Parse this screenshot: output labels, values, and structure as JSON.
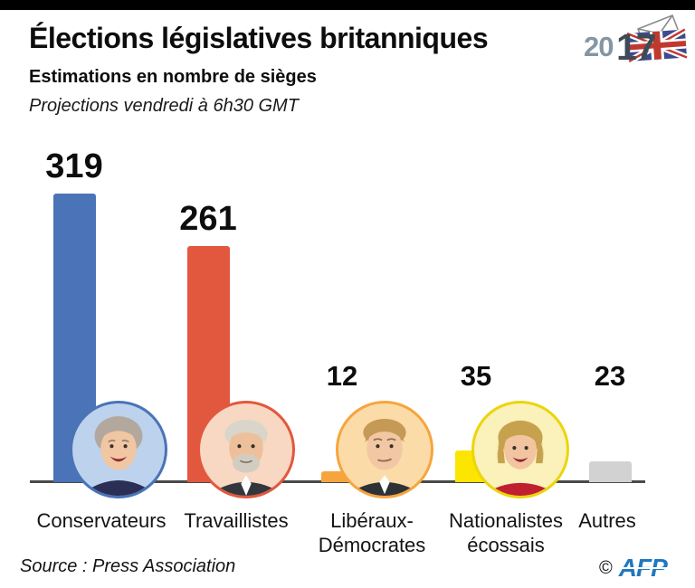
{
  "header": {
    "title": "Élections législatives britanniques",
    "subtitle": "Estimations en nombre de sièges",
    "note": "Projections vendredi à 6h30 GMT",
    "logo": {
      "year_left": "20",
      "year_right": "17",
      "left_color": "#8496a3",
      "right_color": "#3d4b57"
    }
  },
  "chart_data": {
    "type": "bar",
    "title": "Élections législatives britanniques",
    "subtitle": "Estimations en nombre de sièges",
    "note": "Projections vendredi à 6h30 GMT",
    "unit": "sièges",
    "ylim": [
      0,
      340
    ],
    "grid": false,
    "legend": false,
    "categories": [
      "Conservateurs",
      "Travaillistes",
      "Libéraux-Démocrates",
      "Nationalistes écossais",
      "Autres"
    ],
    "category_lines": [
      [
        "Conservateurs"
      ],
      [
        "Travaillistes"
      ],
      [
        "Libéraux-",
        "Démocrates"
      ],
      [
        "Nationalistes",
        "écossais"
      ],
      [
        "Autres"
      ]
    ],
    "values": [
      319,
      261,
      12,
      35,
      23
    ],
    "bar_colors": [
      "#4a73b8",
      "#e2583e",
      "#f6a53e",
      "#fce500",
      "#d2d2d2"
    ],
    "portraits": [
      {
        "fill": "#bdd2ec",
        "border": "#4a73b8"
      },
      {
        "fill": "#f8d8c2",
        "border": "#e2583e"
      },
      {
        "fill": "#fbdca8",
        "border": "#f6a53e"
      },
      {
        "fill": "#faf1bb",
        "border": "#ecd50a"
      }
    ]
  },
  "footer": {
    "source": "Source : Press Association",
    "copyright": "©",
    "agency": "AFP",
    "agency_color": "#2178be"
  }
}
